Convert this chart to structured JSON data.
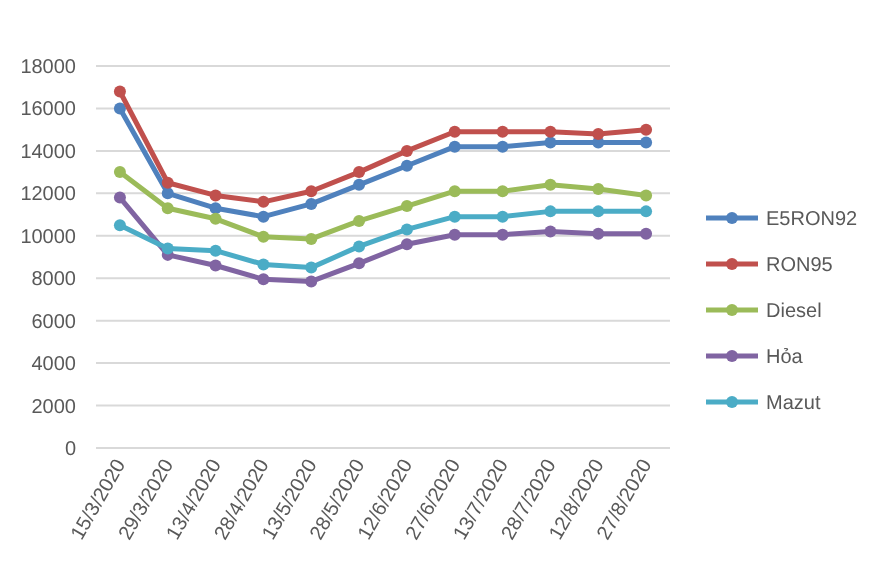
{
  "chart_data": {
    "type": "line",
    "categories": [
      "15/3/2020",
      "29/3/2020",
      "13/4/2020",
      "28/4/2020",
      "13/5/2020",
      "28/5/2020",
      "12/6/2020",
      "27/6/2020",
      "13/7/2020",
      "28/7/2020",
      "12/8/2020",
      "27/8/2020"
    ],
    "series": [
      {
        "name": "E5RON92",
        "color": "#4f81bd",
        "values": [
          16000,
          12000,
          11300,
          10900,
          11500,
          12400,
          13300,
          14200,
          14200,
          14400,
          14400,
          14400
        ]
      },
      {
        "name": "RON95",
        "color": "#c0504d",
        "values": [
          16800,
          12500,
          11900,
          11600,
          12100,
          13000,
          14000,
          14900,
          14900,
          14900,
          14800,
          15000
        ]
      },
      {
        "name": "Diesel",
        "color": "#9bbb59",
        "values": [
          13000,
          11300,
          10800,
          9950,
          9850,
          10700,
          11400,
          12100,
          12100,
          12400,
          12200,
          11900
        ]
      },
      {
        "name": "Hỏa",
        "color": "#8064a2",
        "values": [
          11800,
          9100,
          8600,
          7950,
          7850,
          8700,
          9600,
          10050,
          10050,
          10200,
          10100,
          10100
        ]
      },
      {
        "name": "Mazut",
        "color": "#4bacc6",
        "values": [
          10500,
          9400,
          9300,
          8650,
          8500,
          9500,
          10300,
          10900,
          10900,
          11150,
          11150,
          11150
        ]
      }
    ],
    "ylim": [
      0,
      18000
    ],
    "yticks": [
      0,
      2000,
      4000,
      6000,
      8000,
      10000,
      12000,
      14000,
      16000,
      18000
    ],
    "grid": "y",
    "legend": "right",
    "marker": "circle",
    "line_style": "solid"
  }
}
